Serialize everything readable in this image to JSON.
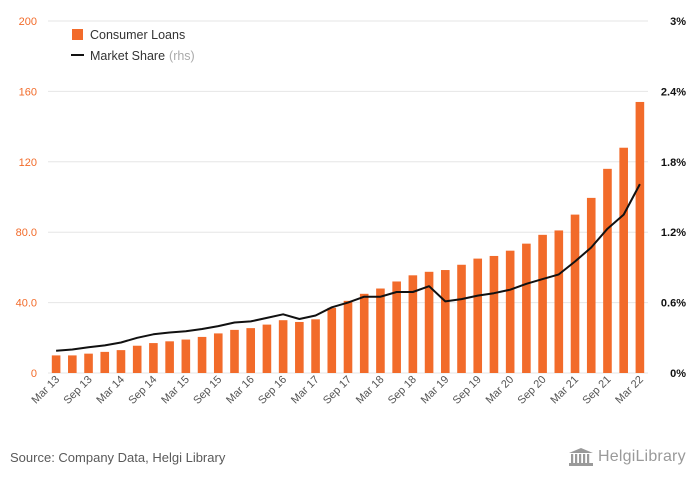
{
  "chart_data": {
    "type": "bar",
    "categories": [
      "Mar 13",
      "Jun 13",
      "Sep 13",
      "Dec 13",
      "Mar 14",
      "Jun 14",
      "Sep 14",
      "Dec 14",
      "Mar 15",
      "Jun 15",
      "Sep 15",
      "Dec 15",
      "Mar 16",
      "Jun 16",
      "Sep 16",
      "Dec 16",
      "Mar 17",
      "Jun 17",
      "Sep 17",
      "Dec 17",
      "Mar 18",
      "Jun 18",
      "Sep 18",
      "Dec 18",
      "Mar 19",
      "Jun 19",
      "Sep 19",
      "Dec 19",
      "Mar 20",
      "Jun 20",
      "Sep 20",
      "Dec 20",
      "Mar 21",
      "Jun 21",
      "Sep 21",
      "Dec 21",
      "Mar 22"
    ],
    "tick_labels": [
      "Mar 13",
      "Sep 13",
      "Mar 14",
      "Sep 14",
      "Mar 15",
      "Sep 15",
      "Mar 16",
      "Sep 16",
      "Mar 17",
      "Sep 17",
      "Mar 18",
      "Sep 18",
      "Mar 19",
      "Sep 19",
      "Mar 20",
      "Sep 20",
      "Mar 21",
      "Sep 21",
      "Mar 22"
    ],
    "series": [
      {
        "name": "Consumer Loans",
        "kind": "bar",
        "axis": "left",
        "color": "#f26b2a",
        "values": [
          10,
          10,
          11,
          12,
          13,
          15.5,
          17,
          18,
          19,
          20.5,
          22.5,
          24.5,
          25.5,
          27.5,
          30,
          29,
          30.5,
          37,
          41,
          45,
          48,
          52,
          55.5,
          57.5,
          58.5,
          61.5,
          65,
          66.5,
          69.5,
          73.5,
          78.5,
          81,
          90,
          99.5,
          116,
          128,
          154
        ]
      },
      {
        "name": "Market Share",
        "name_suffix": "(rhs)",
        "kind": "line",
        "axis": "right",
        "color": "#111111",
        "values": [
          0.19,
          0.2,
          0.22,
          0.235,
          0.26,
          0.3,
          0.33,
          0.345,
          0.355,
          0.375,
          0.4,
          0.43,
          0.44,
          0.47,
          0.5,
          0.46,
          0.49,
          0.56,
          0.6,
          0.65,
          0.65,
          0.69,
          0.69,
          0.74,
          0.61,
          0.63,
          0.66,
          0.68,
          0.71,
          0.76,
          0.8,
          0.84,
          0.95,
          1.07,
          1.23,
          1.35,
          1.61
        ]
      }
    ],
    "y_left": {
      "ticks": [
        "0",
        "40.0",
        "80.0",
        "120",
        "160",
        "200"
      ],
      "tick_values": [
        0,
        40,
        80,
        120,
        160,
        200
      ],
      "lim": [
        0,
        200
      ],
      "color": "#f26b2a"
    },
    "y_right": {
      "ticks": [
        "0%",
        "0.6%",
        "1.2%",
        "1.8%",
        "2.4%",
        "3%"
      ],
      "tick_values": [
        0,
        0.6,
        1.2,
        1.8,
        2.4,
        3
      ],
      "lim": [
        0,
        3
      ],
      "color": "#111111"
    },
    "grid": true,
    "legend_position": "top-left"
  },
  "legend": {
    "bar_label": "Consumer Loans",
    "line_label": "Market Share",
    "line_suffix": "(rhs)",
    "bar_color": "#f26b2a",
    "line_color": "#111111"
  },
  "footer": {
    "source": "Source: Company Data, Helgi Library",
    "logo_text": "HelgiLibrary",
    "logo_icon": "library-building-icon"
  }
}
